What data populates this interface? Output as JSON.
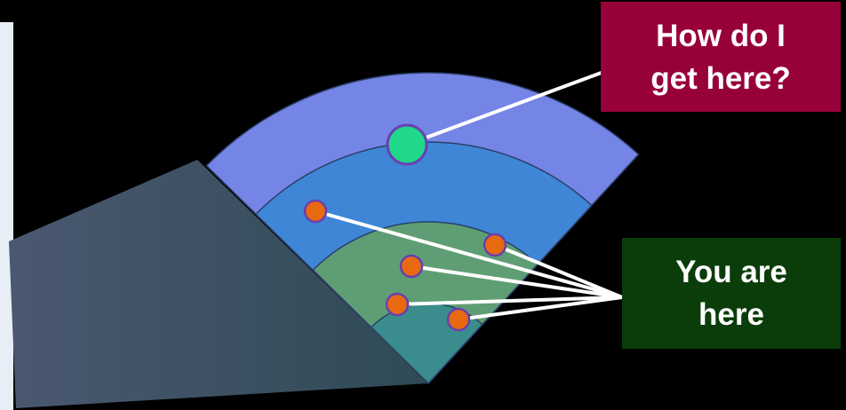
{
  "callouts": [
    {
      "lines": [
        "How do I",
        "get here?"
      ]
    },
    {
      "lines": [
        "You are",
        "here"
      ]
    }
  ]
}
